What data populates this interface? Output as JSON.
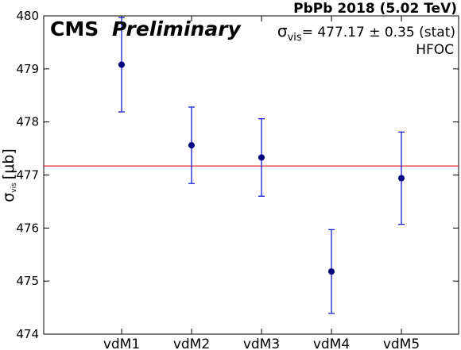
{
  "chart_data": {
    "type": "scatter",
    "header": "PbPb 2018 (5.02 TeV)",
    "experiment": "CMS",
    "status": "Preliminary",
    "detector": "HFOC",
    "fit_symbol": "σ",
    "fit_subscript": "vis",
    "fit_value_text": "= 477.17 ± 0.35 (stat)",
    "fit_value": 477.17,
    "fit_color": "#e03030",
    "ylabel_symbol": "σ",
    "ylabel_subscript": "vis",
    "ylabel_unit": "[μb]",
    "categories": [
      "vdM1",
      "vdM2",
      "vdM3",
      "vdM4",
      "vdM5"
    ],
    "values": [
      479.08,
      477.56,
      477.33,
      475.18,
      476.94
    ],
    "errors": [
      0.89,
      0.72,
      0.73,
      0.79,
      0.87
    ],
    "point_color": "#00007f",
    "error_color": "#1a1ad0",
    "ylim": [
      474,
      480
    ],
    "yticks": [
      474,
      475,
      476,
      477,
      478,
      479,
      480
    ],
    "grid": false
  }
}
